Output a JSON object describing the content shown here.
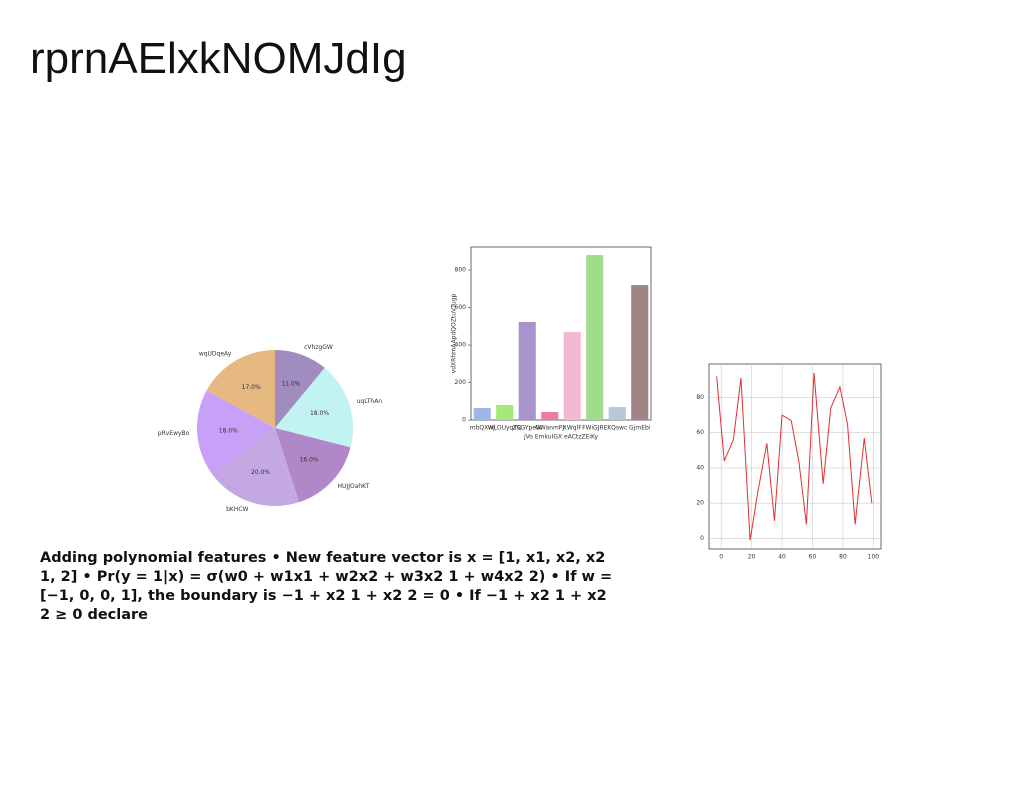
{
  "title": "rprnAElxkNOMJdIg",
  "body": "Adding polynomial features • New feature vector is x = [1, x1, x2, x2 1, 2] • Pr(y = 1|x) = σ(w0 + w1x1 + w2x2 + w3x2 1 + w4x2 2) • If w = [−1, 0, 0, 1], the boundary is −1 + x2 1 + x2 2 = 0 • If −1 + x2 1 + x2 2 ≥ 0 declare",
  "chart_data": [
    {
      "type": "pie",
      "categories": [
        "cVhzgGW",
        "uqLThAn",
        "HUJJOahKT",
        "bKHCW",
        "pRvEwyBo",
        "wqUDqeAy"
      ],
      "values": [
        11.0,
        18.0,
        16.0,
        20.0,
        18.0,
        17.0
      ],
      "value_labels": [
        "11.0%",
        "18.0%",
        "16.0%",
        "20.0%",
        "18.0%",
        "17.0%"
      ],
      "colors": [
        "#a08cbf",
        "#c2f2f2",
        "#b088c8",
        "#c4a8e4",
        "#c9a0f8",
        "#e6b882"
      ]
    },
    {
      "type": "bar",
      "xlabel": "jVo EmkuIGX eACtzZEiKy",
      "ylabel": "vdXRhrnAApdQOZtuVTugp",
      "categories": [
        "mbQXwj",
        "WLOUyqYQ",
        "ZSGYpeW",
        "GWanmPJ",
        "XWqlF",
        "FWiGJRE",
        "KQswc",
        "GjmEbi"
      ],
      "values": [
        64,
        80,
        523,
        43,
        469,
        880,
        69,
        720
      ],
      "colors": [
        "#9db8e8",
        "#a4e87a",
        "#a894cc",
        "#f07aa0",
        "#f4b8d0",
        "#a0dc8c",
        "#b8c8d8",
        "#a08488"
      ],
      "ylim": [
        0,
        923
      ],
      "yticks": [
        0,
        200,
        400,
        600,
        800
      ]
    },
    {
      "type": "line",
      "x": [
        -3,
        2,
        8,
        13,
        19,
        24,
        30,
        35,
        40,
        46,
        51,
        56,
        61,
        67,
        72,
        78,
        83,
        88,
        94,
        99
      ],
      "values": [
        92,
        44,
        56,
        91,
        -1,
        26,
        54,
        10,
        70,
        67,
        44,
        8,
        94,
        31,
        74,
        86,
        65,
        8,
        57,
        20
      ],
      "color": "#e03030",
      "xlim": [
        -8,
        105
      ],
      "ylim": [
        -6,
        99
      ],
      "xticks": [
        0,
        20,
        40,
        60,
        80,
        100
      ],
      "yticks": [
        0,
        20,
        40,
        60,
        80
      ],
      "grid": true
    }
  ]
}
